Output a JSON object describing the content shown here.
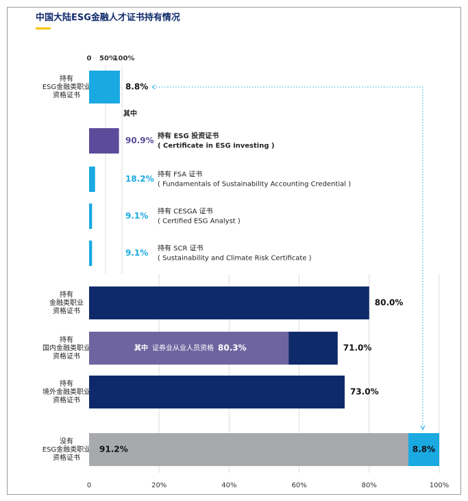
{
  "chart_data": {
    "type": "bar",
    "title": "中国大陆ESG金融人才证书持有情况",
    "xlim": [
      0,
      100
    ],
    "xticks": [
      0,
      {
        "value": 20,
        "label": "20%"
      },
      {
        "value": 40,
        "label": "40%"
      },
      {
        "value": 60,
        "label": "60%"
      },
      {
        "value": 80,
        "label": "80%"
      },
      {
        "value": 100,
        "label": "100%"
      }
    ],
    "grid": true,
    "rows": [
      {
        "label_lines": [
          "持有",
          "ESG金融类职业",
          "资格证书"
        ],
        "segments": [
          {
            "value": 8.8,
            "value_label": "8.8%",
            "color": "#1aa9e1"
          }
        ]
      },
      {
        "label_lines": [
          "持有",
          "金融类职业",
          "资格证书"
        ],
        "segments": [
          {
            "value": 80.0,
            "value_label": "80.0%",
            "color": "#0f2a6b"
          }
        ]
      },
      {
        "label_lines": [
          "持有",
          "国内金融类职业",
          "资格证书"
        ],
        "segments": [
          {
            "value": 71.0,
            "value_label": "71.0%",
            "color": "#0f2a6b"
          }
        ],
        "sub": {
          "name": "其中",
          "label": "证券业从业人员资格",
          "value": 80.3,
          "value_label": "80.3%",
          "color": "#6e65a0"
        }
      },
      {
        "label_lines": [
          "持有",
          "境外金融类职业",
          "资格证书"
        ],
        "segments": [
          {
            "value": 73.0,
            "value_label": "73.0%",
            "color": "#0f2a6b"
          }
        ]
      },
      {
        "label_lines": [
          "没有",
          "ESG金融类职业",
          "资格证书"
        ],
        "segments": [
          {
            "value": 91.2,
            "value_label": "91.2%",
            "color": "#a7a9ac"
          },
          {
            "value": 8.8,
            "value_label": "8.8%",
            "color": "#1aa9e1"
          }
        ]
      }
    ],
    "inset": {
      "heading": "其中",
      "xlim": [
        0,
        100
      ],
      "xticks": [
        0,
        {
          "value": 50,
          "label": "50%"
        },
        {
          "value": 100,
          "label": "100%"
        }
      ],
      "items": [
        {
          "label": "持有 ESG 投资证书",
          "sublabel": "( Certificate in ESG investing )",
          "value": 90.9,
          "value_label": "90.9%",
          "color": "#5b4b9a"
        },
        {
          "label": "持有 FSA 证书",
          "sublabel": "( Fundamentals of Sustainability Accounting Credential )",
          "value": 18.2,
          "value_label": "18.2%",
          "color": "#1aa9e1"
        },
        {
          "label": "持有 CESGA 证书",
          "sublabel": "( Certified ESG Analyst )",
          "value": 9.1,
          "value_label": "9.1%",
          "color": "#1aa9e1"
        },
        {
          "label": "持有 SCR 证书",
          "sublabel": "( Sustainability and Climate Risk Certificate )",
          "value": 9.1,
          "value_label": "9.1%",
          "color": "#1aa9e1"
        }
      ]
    }
  }
}
